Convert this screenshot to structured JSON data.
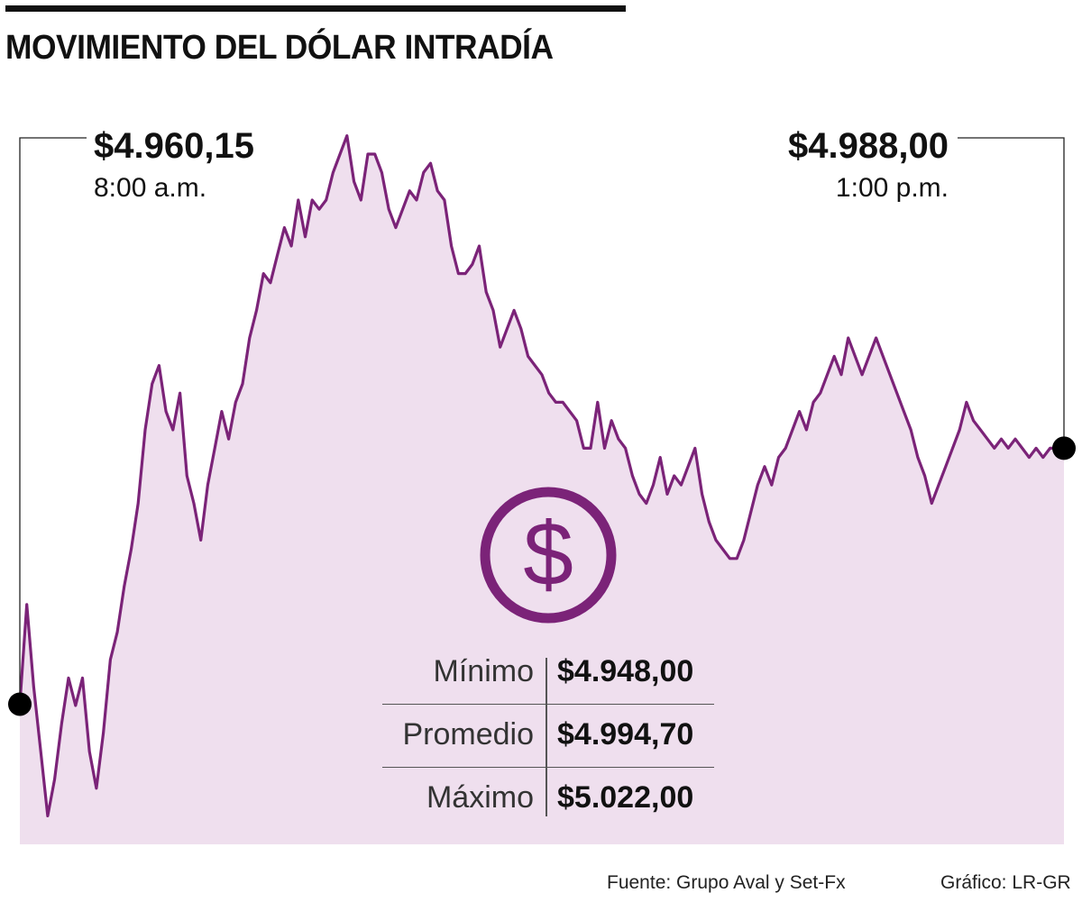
{
  "title": "MOVIMIENTO DEL DÓLAR INTRADÍA",
  "callouts": {
    "start": {
      "value": "$4.960,15",
      "time": "8:00 a.m."
    },
    "end": {
      "value": "$4.988,00",
      "time": "1:00 p.m."
    }
  },
  "stats": [
    {
      "label": "Mínimo",
      "value": "$4.948,00"
    },
    {
      "label": "Promedio",
      "value": "$4.994,70"
    },
    {
      "label": "Máximo",
      "value": "$5.022,00"
    }
  ],
  "icon": {
    "name": "dollar-coin-icon",
    "symbol": "$"
  },
  "footer": {
    "source": "Fuente: Grupo Aval y Set-Fx",
    "credit": "Gráfico: LR-GR"
  },
  "colors": {
    "line": "#7b2378",
    "fill": "#efdfee",
    "marker": "#000000"
  },
  "chart_data": {
    "type": "line",
    "title": "MOVIMIENTO DEL DÓLAR INTRADÍA",
    "xlabel": "",
    "ylabel": "",
    "x_range": [
      "8:00 a.m.",
      "1:00 p.m."
    ],
    "ylim": [
      4945,
      5025
    ],
    "grid": false,
    "legend": "none",
    "series": [
      {
        "points": [
          [
            "8:00",
            4960.15
          ],
          [
            "8:02",
            4971.0
          ],
          [
            "8:04",
            4962.0
          ],
          [
            "8:06",
            4955.0
          ],
          [
            "8:08",
            4948.0
          ],
          [
            "8:10",
            4952.0
          ],
          [
            "8:12",
            4958.0
          ],
          [
            "8:14",
            4963.0
          ],
          [
            "8:16",
            4960.0
          ],
          [
            "8:18",
            4963.0
          ],
          [
            "8:20",
            4955.0
          ],
          [
            "8:22",
            4951.0
          ],
          [
            "8:24",
            4957.0
          ],
          [
            "8:26",
            4965.0
          ],
          [
            "8:28",
            4968.0
          ],
          [
            "8:30",
            4973.0
          ],
          [
            "8:32",
            4977.0
          ],
          [
            "8:34",
            4982.0
          ],
          [
            "8:36",
            4990.0
          ],
          [
            "8:38",
            4995.0
          ],
          [
            "8:40",
            4997.0
          ],
          [
            "8:42",
            4992.0
          ],
          [
            "8:44",
            4990.0
          ],
          [
            "8:46",
            4994.0
          ],
          [
            "8:48",
            4985.0
          ],
          [
            "8:50",
            4982.0
          ],
          [
            "8:52",
            4978.0
          ],
          [
            "8:54",
            4984.0
          ],
          [
            "8:56",
            4988.0
          ],
          [
            "8:58",
            4992.0
          ],
          [
            "9:00",
            4989.0
          ],
          [
            "9:02",
            4993.0
          ],
          [
            "9:04",
            4995.0
          ],
          [
            "9:06",
            5000.0
          ],
          [
            "9:08",
            5003.0
          ],
          [
            "9:10",
            5007.0
          ],
          [
            "9:12",
            5006.0
          ],
          [
            "9:14",
            5009.0
          ],
          [
            "9:16",
            5012.0
          ],
          [
            "9:18",
            5010.0
          ],
          [
            "9:20",
            5015.0
          ],
          [
            "9:22",
            5011.0
          ],
          [
            "9:24",
            5015.0
          ],
          [
            "9:26",
            5014.0
          ],
          [
            "9:28",
            5015.0
          ],
          [
            "9:30",
            5018.0
          ],
          [
            "9:32",
            5020.0
          ],
          [
            "9:34",
            5022.0
          ],
          [
            "9:36",
            5017.0
          ],
          [
            "9:38",
            5015.0
          ],
          [
            "9:40",
            5020.0
          ],
          [
            "9:42",
            5020.0
          ],
          [
            "9:44",
            5018.0
          ],
          [
            "9:46",
            5014.0
          ],
          [
            "9:48",
            5012.0
          ],
          [
            "9:50",
            5014.0
          ],
          [
            "9:52",
            5016.0
          ],
          [
            "9:54",
            5015.0
          ],
          [
            "9:56",
            5018.0
          ],
          [
            "9:58",
            5019.0
          ],
          [
            "10:00",
            5016.0
          ],
          [
            "10:02",
            5015.0
          ],
          [
            "10:04",
            5010.0
          ],
          [
            "10:06",
            5007.0
          ],
          [
            "10:08",
            5007.0
          ],
          [
            "10:10",
            5008.0
          ],
          [
            "10:12",
            5010.0
          ],
          [
            "10:14",
            5005.0
          ],
          [
            "10:16",
            5003.0
          ],
          [
            "10:18",
            4999.0
          ],
          [
            "10:20",
            5001.0
          ],
          [
            "10:22",
            5003.0
          ],
          [
            "10:24",
            5001.0
          ],
          [
            "10:26",
            4998.0
          ],
          [
            "10:28",
            4997.0
          ],
          [
            "10:30",
            4996.0
          ],
          [
            "10:32",
            4994.0
          ],
          [
            "10:34",
            4993.0
          ],
          [
            "10:36",
            4993.0
          ],
          [
            "10:38",
            4992.0
          ],
          [
            "10:40",
            4991.0
          ],
          [
            "10:42",
            4988.0
          ],
          [
            "10:44",
            4988.0
          ],
          [
            "10:46",
            4993.0
          ],
          [
            "10:48",
            4988.0
          ],
          [
            "10:50",
            4991.0
          ],
          [
            "10:52",
            4989.0
          ],
          [
            "10:54",
            4988.0
          ],
          [
            "10:56",
            4985.0
          ],
          [
            "10:58",
            4983.0
          ],
          [
            "11:00",
            4982.0
          ],
          [
            "11:02",
            4984.0
          ],
          [
            "11:04",
            4987.0
          ],
          [
            "11:06",
            4983.0
          ],
          [
            "11:08",
            4985.0
          ],
          [
            "11:10",
            4984.0
          ],
          [
            "11:12",
            4986.0
          ],
          [
            "11:14",
            4988.0
          ],
          [
            "11:16",
            4983.0
          ],
          [
            "11:18",
            4980.0
          ],
          [
            "11:20",
            4978.0
          ],
          [
            "11:22",
            4977.0
          ],
          [
            "11:24",
            4976.0
          ],
          [
            "11:26",
            4976.0
          ],
          [
            "11:28",
            4978.0
          ],
          [
            "11:30",
            4981.0
          ],
          [
            "11:32",
            4984.0
          ],
          [
            "11:34",
            4986.0
          ],
          [
            "11:36",
            4984.0
          ],
          [
            "11:38",
            4987.0
          ],
          [
            "11:40",
            4988.0
          ],
          [
            "11:42",
            4990.0
          ],
          [
            "11:44",
            4992.0
          ],
          [
            "11:46",
            4990.0
          ],
          [
            "11:48",
            4993.0
          ],
          [
            "11:50",
            4994.0
          ],
          [
            "11:52",
            4996.0
          ],
          [
            "11:54",
            4998.0
          ],
          [
            "11:56",
            4996.0
          ],
          [
            "11:58",
            5000.0
          ],
          [
            "12:00",
            4998.0
          ],
          [
            "12:02",
            4996.0
          ],
          [
            "12:04",
            4998.0
          ],
          [
            "12:06",
            5000.0
          ],
          [
            "12:08",
            4998.0
          ],
          [
            "12:10",
            4996.0
          ],
          [
            "12:12",
            4994.0
          ],
          [
            "12:14",
            4992.0
          ],
          [
            "12:16",
            4990.0
          ],
          [
            "12:18",
            4987.0
          ],
          [
            "12:20",
            4985.0
          ],
          [
            "12:22",
            4982.0
          ],
          [
            "12:24",
            4984.0
          ],
          [
            "12:26",
            4986.0
          ],
          [
            "12:28",
            4988.0
          ],
          [
            "12:30",
            4990.0
          ],
          [
            "12:32",
            4993.0
          ],
          [
            "12:34",
            4991.0
          ],
          [
            "12:36",
            4990.0
          ],
          [
            "12:38",
            4989.0
          ],
          [
            "12:40",
            4988.0
          ],
          [
            "12:42",
            4989.0
          ],
          [
            "12:44",
            4988.0
          ],
          [
            "12:46",
            4989.0
          ],
          [
            "12:48",
            4988.0
          ],
          [
            "12:50",
            4987.0
          ],
          [
            "12:52",
            4988.0
          ],
          [
            "12:54",
            4987.0
          ],
          [
            "12:56",
            4988.0
          ],
          [
            "12:58",
            4988.0
          ],
          [
            "13:00",
            4988.0
          ]
        ]
      }
    ],
    "annotations": [
      {
        "label": "$4.960,15 / 8:00 a.m.",
        "at": "start"
      },
      {
        "label": "$4.988,00 / 1:00 p.m.",
        "at": "end"
      }
    ],
    "summary": {
      "min": 4948.0,
      "mean": 4994.7,
      "max": 5022.0
    }
  }
}
